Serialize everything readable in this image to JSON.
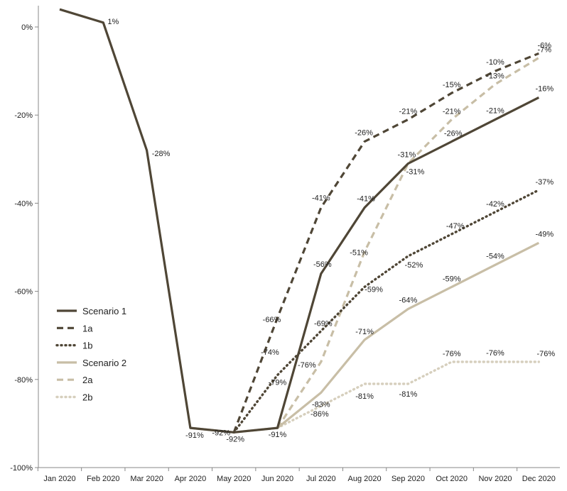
{
  "chart_data": {
    "type": "line",
    "title": "",
    "xlabel": "",
    "ylabel": "",
    "categories": [
      "Jan 2020",
      "Feb 2020",
      "Mar 2020",
      "Apr 2020",
      "May 2020",
      "Jun 2020",
      "Jul 2020",
      "Aug 2020",
      "Sep 2020",
      "Oct 2020",
      "Nov 2020",
      "Dec 2020"
    ],
    "ylim": [
      -100,
      0
    ],
    "y_ticks": [
      0,
      -20,
      -40,
      -60,
      -80,
      -100
    ],
    "y_tick_labels": [
      "0%",
      "-20%",
      "-40%",
      "-60%",
      "-80%",
      "-100%"
    ],
    "grid": false,
    "legend_position": "left",
    "series": [
      {
        "name": "Scenario 1",
        "color": "#4f4636",
        "style": "solid",
        "values": [
          4,
          1,
          -28,
          -91,
          -92,
          -91,
          -56,
          -41,
          -31,
          -26,
          -21,
          -16
        ],
        "labels": [
          "4%",
          "1%",
          "-28%",
          "-91%",
          "",
          "",
          "-56%",
          "-41%",
          "-31%",
          "-26%",
          "-21%",
          "-16%"
        ]
      },
      {
        "name": "1a",
        "color": "#4f4636",
        "style": "dashed",
        "values": [
          null,
          null,
          null,
          null,
          -92,
          -66,
          -41,
          -26,
          -21,
          -15,
          -10,
          -6
        ],
        "labels": [
          "",
          "",
          "",
          "",
          "-92%",
          "-66%",
          "-41%",
          "-26%",
          "-21%",
          "-15%",
          "-10%",
          "-6%"
        ]
      },
      {
        "name": "1b",
        "color": "#4f4636",
        "style": "dotted",
        "values": [
          null,
          null,
          null,
          null,
          -92,
          -79,
          -69,
          -59,
          -52,
          -47,
          -42,
          -37
        ],
        "labels": [
          "",
          "",
          "",
          "",
          "",
          "-79%",
          "-69%",
          "-59%",
          "-52%",
          "-47%",
          "-42%",
          "-37%"
        ]
      },
      {
        "name": "Scenario 2",
        "color": "#c8bea6",
        "style": "solid",
        "values": [
          null,
          null,
          null,
          -91,
          -92,
          -91,
          -83,
          -71,
          -64,
          -59,
          -54,
          -49
        ],
        "labels": [
          "",
          "",
          "",
          "",
          "-92%",
          "-91%",
          "-83%",
          "-71%",
          "-64%",
          "-59%",
          "-54%",
          "-49%"
        ]
      },
      {
        "name": "2a",
        "color": "#c8bea6",
        "style": "dashed",
        "values": [
          null,
          null,
          null,
          null,
          null,
          -91,
          -76,
          -51,
          -31,
          -21,
          -13,
          -7
        ],
        "labels": [
          "",
          "",
          "",
          "",
          "",
          "",
          "-76%",
          "-51%",
          "-31%",
          "-21%",
          "-13%",
          "-7%"
        ]
      },
      {
        "name": "2b",
        "color": "#d6cfbd",
        "style": "dotted",
        "values": [
          null,
          null,
          null,
          null,
          null,
          -91,
          -86,
          -81,
          -81,
          -76,
          -76,
          -76
        ],
        "labels": [
          "",
          "",
          "",
          "",
          "",
          "",
          "-86%",
          "-81%",
          "-81%",
          "-76%",
          "-76%",
          "-76%"
        ]
      }
    ]
  },
  "extra_labels": [
    "-74%"
  ]
}
